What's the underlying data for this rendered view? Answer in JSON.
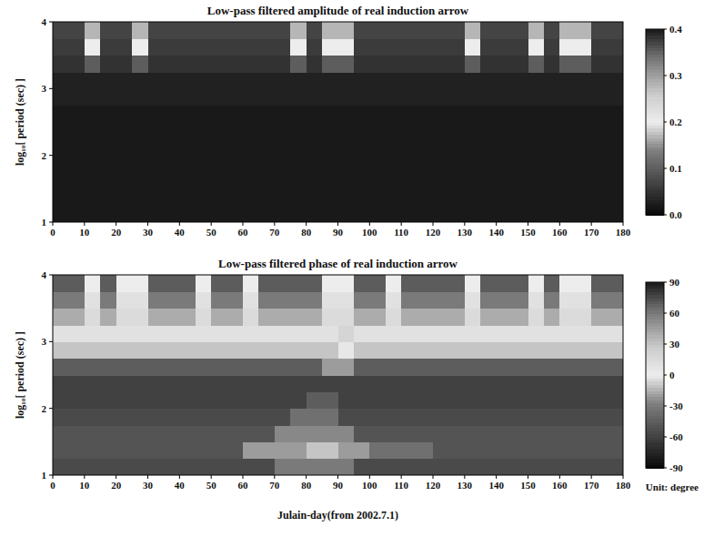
{
  "chart_data": [
    {
      "type": "heatmap",
      "title": "Low-pass filtered  amplitude of real induction arrow",
      "y_label": "log₁₀[ period (sec) ]",
      "xlim": [
        0,
        180
      ],
      "xticks": [
        0,
        10,
        20,
        30,
        40,
        50,
        60,
        70,
        80,
        90,
        100,
        110,
        120,
        130,
        140,
        150,
        160,
        170,
        180
      ],
      "ylim": [
        1,
        4
      ],
      "yticks": [
        1,
        2,
        3,
        4
      ],
      "x_bins": [
        0,
        5,
        10,
        15,
        20,
        25,
        30,
        35,
        40,
        45,
        50,
        55,
        60,
        65,
        70,
        75,
        80,
        85,
        90,
        95,
        100,
        105,
        110,
        115,
        120,
        125,
        130,
        135,
        140,
        145,
        150,
        155,
        160,
        165,
        170,
        175,
        180
      ],
      "y_bins": [
        1,
        1.25,
        1.5,
        1.75,
        2,
        2.25,
        2.5,
        2.75,
        3,
        3.25,
        3.5,
        3.75,
        4
      ],
      "cells": [
        [
          0.02,
          0.02,
          0.02,
          0.02,
          0.02,
          0.02,
          0.02,
          0.02,
          0.02,
          0.02,
          0.02,
          0.02,
          0.02,
          0.02,
          0.02,
          0.02,
          0.02,
          0.02,
          0.02,
          0.02,
          0.02,
          0.02,
          0.02,
          0.02,
          0.02,
          0.02,
          0.02,
          0.02,
          0.02,
          0.02,
          0.02,
          0.02,
          0.02,
          0.02,
          0.02,
          0.02
        ],
        [
          0.02,
          0.02,
          0.02,
          0.02,
          0.02,
          0.02,
          0.02,
          0.02,
          0.02,
          0.02,
          0.02,
          0.02,
          0.02,
          0.02,
          0.02,
          0.02,
          0.02,
          0.02,
          0.02,
          0.02,
          0.02,
          0.02,
          0.02,
          0.02,
          0.02,
          0.02,
          0.02,
          0.02,
          0.02,
          0.02,
          0.02,
          0.02,
          0.02,
          0.02,
          0.02,
          0.02
        ],
        [
          0.02,
          0.02,
          0.02,
          0.02,
          0.02,
          0.02,
          0.02,
          0.02,
          0.02,
          0.02,
          0.02,
          0.02,
          0.02,
          0.02,
          0.02,
          0.02,
          0.02,
          0.02,
          0.02,
          0.02,
          0.02,
          0.02,
          0.02,
          0.02,
          0.02,
          0.02,
          0.02,
          0.02,
          0.02,
          0.02,
          0.02,
          0.02,
          0.02,
          0.02,
          0.02,
          0.02
        ],
        [
          0.02,
          0.02,
          0.02,
          0.02,
          0.02,
          0.02,
          0.02,
          0.02,
          0.02,
          0.02,
          0.02,
          0.02,
          0.02,
          0.02,
          0.02,
          0.02,
          0.02,
          0.02,
          0.02,
          0.02,
          0.02,
          0.02,
          0.02,
          0.02,
          0.02,
          0.02,
          0.02,
          0.02,
          0.02,
          0.02,
          0.02,
          0.02,
          0.02,
          0.02,
          0.02,
          0.02
        ],
        [
          0.02,
          0.02,
          0.02,
          0.02,
          0.02,
          0.02,
          0.02,
          0.02,
          0.02,
          0.02,
          0.02,
          0.02,
          0.02,
          0.02,
          0.02,
          0.02,
          0.02,
          0.02,
          0.02,
          0.02,
          0.02,
          0.02,
          0.02,
          0.02,
          0.02,
          0.02,
          0.02,
          0.02,
          0.02,
          0.02,
          0.02,
          0.02,
          0.02,
          0.02,
          0.02,
          0.02
        ],
        [
          0.02,
          0.02,
          0.02,
          0.02,
          0.02,
          0.02,
          0.02,
          0.02,
          0.02,
          0.02,
          0.02,
          0.02,
          0.02,
          0.02,
          0.02,
          0.02,
          0.02,
          0.02,
          0.02,
          0.02,
          0.02,
          0.02,
          0.02,
          0.02,
          0.02,
          0.02,
          0.02,
          0.02,
          0.02,
          0.02,
          0.02,
          0.02,
          0.02,
          0.02,
          0.02,
          0.02
        ],
        [
          0.02,
          0.02,
          0.02,
          0.02,
          0.02,
          0.02,
          0.02,
          0.02,
          0.02,
          0.02,
          0.02,
          0.02,
          0.02,
          0.02,
          0.02,
          0.02,
          0.02,
          0.02,
          0.02,
          0.02,
          0.02,
          0.02,
          0.02,
          0.02,
          0.02,
          0.02,
          0.02,
          0.02,
          0.02,
          0.02,
          0.02,
          0.02,
          0.02,
          0.02,
          0.02,
          0.02
        ],
        [
          0.03,
          0.03,
          0.03,
          0.03,
          0.03,
          0.03,
          0.03,
          0.03,
          0.03,
          0.03,
          0.03,
          0.03,
          0.03,
          0.03,
          0.03,
          0.03,
          0.03,
          0.03,
          0.03,
          0.03,
          0.03,
          0.03,
          0.03,
          0.03,
          0.03,
          0.03,
          0.03,
          0.03,
          0.03,
          0.03,
          0.03,
          0.03,
          0.03,
          0.03,
          0.03,
          0.03
        ],
        [
          0.03,
          0.03,
          0.03,
          0.03,
          0.03,
          0.03,
          0.03,
          0.03,
          0.03,
          0.03,
          0.03,
          0.03,
          0.03,
          0.03,
          0.03,
          0.03,
          0.03,
          0.03,
          0.03,
          0.03,
          0.03,
          0.03,
          0.03,
          0.03,
          0.03,
          0.03,
          0.03,
          0.03,
          0.03,
          0.03,
          0.03,
          0.03,
          0.03,
          0.03,
          0.03,
          0.03
        ],
        [
          0.05,
          0.05,
          0.1,
          0.05,
          0.05,
          0.1,
          0.05,
          0.05,
          0.05,
          0.05,
          0.05,
          0.05,
          0.05,
          0.05,
          0.05,
          0.1,
          0.05,
          0.1,
          0.1,
          0.05,
          0.05,
          0.05,
          0.05,
          0.05,
          0.05,
          0.05,
          0.1,
          0.05,
          0.05,
          0.05,
          0.1,
          0.05,
          0.1,
          0.1,
          0.05,
          0.05
        ],
        [
          0.06,
          0.06,
          0.2,
          0.06,
          0.06,
          0.2,
          0.06,
          0.06,
          0.06,
          0.06,
          0.06,
          0.06,
          0.06,
          0.06,
          0.06,
          0.2,
          0.06,
          0.2,
          0.2,
          0.06,
          0.06,
          0.06,
          0.06,
          0.06,
          0.06,
          0.06,
          0.2,
          0.06,
          0.06,
          0.06,
          0.2,
          0.06,
          0.2,
          0.2,
          0.06,
          0.06
        ],
        [
          0.07,
          0.07,
          0.28,
          0.07,
          0.07,
          0.28,
          0.07,
          0.07,
          0.07,
          0.07,
          0.07,
          0.07,
          0.07,
          0.07,
          0.07,
          0.28,
          0.07,
          0.28,
          0.28,
          0.07,
          0.07,
          0.07,
          0.07,
          0.07,
          0.07,
          0.07,
          0.28,
          0.07,
          0.07,
          0.07,
          0.28,
          0.07,
          0.28,
          0.28,
          0.07,
          0.07
        ]
      ],
      "colorbar_range": [
        0,
        0.4
      ],
      "colorbar_ticks": [
        {
          "value": 0,
          "label": "0.0"
        },
        0.1,
        0.2,
        0.3,
        0.4
      ]
    },
    {
      "type": "heatmap",
      "title": "Low-pass filtered  phase of real induction arrow",
      "x_label": "Julain-day(from 2002.7.1)",
      "y_label": "log₁₀[ period (sec) ]",
      "xlim": [
        0,
        180
      ],
      "xticks": [
        0,
        10,
        20,
        30,
        40,
        50,
        60,
        70,
        80,
        90,
        100,
        110,
        120,
        130,
        140,
        150,
        160,
        170,
        180
      ],
      "ylim": [
        1,
        4
      ],
      "yticks": [
        1,
        2,
        3,
        4
      ],
      "x_bins": [
        0,
        5,
        10,
        15,
        20,
        25,
        30,
        35,
        40,
        45,
        50,
        55,
        60,
        65,
        70,
        75,
        80,
        85,
        90,
        95,
        100,
        105,
        110,
        115,
        120,
        125,
        130,
        135,
        140,
        145,
        150,
        155,
        160,
        165,
        170,
        175,
        180
      ],
      "y_bins": [
        1,
        1.25,
        1.5,
        1.75,
        2,
        2.25,
        2.5,
        2.75,
        3,
        3.25,
        3.5,
        3.75,
        4
      ],
      "cells": [
        [
          -55,
          -55,
          -55,
          -55,
          -55,
          -55,
          -55,
          -55,
          -55,
          -55,
          -55,
          -55,
          -55,
          -55,
          -30,
          -30,
          -30,
          -30,
          -30,
          -55,
          -55,
          -55,
          -55,
          -55,
          -55,
          -55,
          -55,
          -55,
          -55,
          -55,
          -55,
          -55,
          -55,
          -55,
          -55,
          -55
        ],
        [
          -50,
          -50,
          -50,
          -50,
          -50,
          -50,
          -50,
          -50,
          -50,
          -50,
          -50,
          -50,
          -20,
          -20,
          -20,
          -20,
          -10,
          -10,
          -20,
          -20,
          -35,
          -35,
          -35,
          -35,
          -50,
          -50,
          -50,
          -50,
          -50,
          -50,
          -50,
          -50,
          -50,
          -50,
          -50,
          -50
        ],
        [
          -50,
          -50,
          -50,
          -50,
          -50,
          -50,
          -50,
          -50,
          -50,
          -50,
          -50,
          -50,
          -50,
          -50,
          -25,
          -25,
          -25,
          -25,
          -25,
          -50,
          -50,
          -50,
          -50,
          -50,
          -50,
          -50,
          -50,
          -50,
          -50,
          -50,
          -50,
          -50,
          -50,
          -50,
          -50,
          -50
        ],
        [
          -55,
          -55,
          -55,
          -55,
          -55,
          -55,
          -55,
          -55,
          -55,
          -55,
          -55,
          -55,
          -55,
          -55,
          -55,
          -35,
          -35,
          -35,
          -55,
          -55,
          -55,
          -55,
          -55,
          -55,
          -55,
          -55,
          -55,
          -55,
          -55,
          -55,
          -55,
          -55,
          -55,
          -55,
          -55,
          -55
        ],
        [
          -60,
          -60,
          -60,
          -60,
          -60,
          -60,
          -60,
          -60,
          -60,
          -60,
          -60,
          -60,
          -60,
          -60,
          -60,
          -60,
          -45,
          -45,
          -60,
          -60,
          -60,
          -60,
          -60,
          -60,
          -60,
          -60,
          -60,
          -60,
          -60,
          -60,
          -60,
          -60,
          -60,
          -60,
          -60,
          -60
        ],
        [
          -60,
          -60,
          -60,
          -60,
          -60,
          -60,
          -60,
          -60,
          -60,
          -60,
          -60,
          -60,
          -60,
          -60,
          -60,
          -60,
          -60,
          -60,
          -60,
          -60,
          -60,
          -60,
          -60,
          -60,
          -60,
          -60,
          -60,
          -60,
          -60,
          -60,
          -60,
          -60,
          -60,
          -60,
          -60,
          -60
        ],
        [
          -45,
          -45,
          -45,
          -45,
          -45,
          -45,
          -45,
          -45,
          -45,
          -45,
          -45,
          -45,
          -45,
          -45,
          -45,
          -45,
          -45,
          -20,
          -20,
          -45,
          -45,
          -45,
          -45,
          -45,
          -45,
          -45,
          -45,
          -45,
          -45,
          -45,
          -45,
          -45,
          -45,
          -45,
          -45,
          -45
        ],
        [
          -10,
          -10,
          -10,
          -10,
          -10,
          -10,
          -10,
          -10,
          -10,
          -10,
          -10,
          -10,
          -10,
          -10,
          -10,
          -10,
          -10,
          -10,
          5,
          -10,
          -10,
          -10,
          -10,
          -10,
          -10,
          -10,
          -10,
          -10,
          -10,
          -10,
          -10,
          -10,
          -10,
          -10,
          -10,
          -10
        ],
        [
          10,
          10,
          10,
          10,
          10,
          10,
          10,
          10,
          10,
          10,
          10,
          10,
          10,
          10,
          10,
          10,
          10,
          10,
          20,
          10,
          10,
          10,
          10,
          10,
          10,
          10,
          10,
          10,
          10,
          10,
          10,
          10,
          10,
          10,
          10,
          10
        ],
        [
          40,
          40,
          15,
          40,
          15,
          15,
          40,
          40,
          40,
          15,
          40,
          40,
          15,
          40,
          40,
          40,
          40,
          15,
          15,
          40,
          40,
          15,
          40,
          40,
          40,
          40,
          15,
          40,
          40,
          40,
          15,
          40,
          15,
          15,
          40,
          40
        ],
        [
          60,
          60,
          10,
          60,
          10,
          10,
          60,
          60,
          60,
          10,
          60,
          60,
          10,
          60,
          60,
          60,
          60,
          10,
          10,
          60,
          60,
          10,
          60,
          60,
          60,
          60,
          10,
          60,
          60,
          60,
          10,
          60,
          10,
          10,
          60,
          60
        ],
        [
          70,
          70,
          0,
          70,
          0,
          0,
          70,
          70,
          70,
          0,
          70,
          70,
          0,
          70,
          70,
          70,
          70,
          0,
          0,
          70,
          70,
          0,
          70,
          70,
          70,
          70,
          0,
          70,
          70,
          70,
          0,
          70,
          0,
          0,
          70,
          70
        ]
      ],
      "colorbar_range": [
        -90,
        90
      ],
      "colorbar_ticks": [
        -90,
        -60,
        -30,
        0,
        30,
        60,
        90
      ],
      "colorbar_unit": "Unit: degree"
    }
  ]
}
